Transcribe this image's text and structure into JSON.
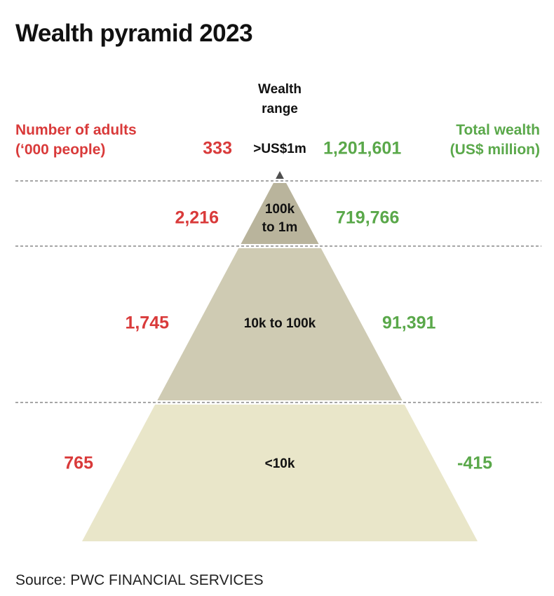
{
  "chart_data": {
    "type": "table",
    "title": "Wealth pyramid 2023",
    "left_header": {
      "line1": "Number of adults",
      "line2": "(‘000 people)"
    },
    "center_header": {
      "line1": "Wealth",
      "line2": "range"
    },
    "right_header": {
      "line1": "Total wealth",
      "line2": "(US$ million)"
    },
    "tiers": [
      {
        "range_label": ">US$1m",
        "adults": "333",
        "wealth": "1,201,601",
        "adults_value": 333,
        "wealth_value": 1201601
      },
      {
        "range_label": "100k to 1m",
        "adults": "2,216",
        "wealth": "719,766",
        "adults_value": 2216,
        "wealth_value": 719766
      },
      {
        "range_label": "10k to 100k",
        "adults": "1,745",
        "wealth": "91,391",
        "adults_value": 1745,
        "wealth_value": 91391
      },
      {
        "range_label": "<10k",
        "adults": "765",
        "wealth": "-415",
        "adults_value": 765,
        "wealth_value": -415
      }
    ],
    "source": "Source: PWC FINANCIAL SERVICES"
  },
  "colors": {
    "adults_red": "#d93a3a",
    "wealth_green": "#5aa84a",
    "tier_top": "#4f4f4f",
    "tier_2": "#b9b49c",
    "tier_3": "#cfcbb3",
    "tier_4": "#e9e6c9",
    "separator": "#888888"
  }
}
